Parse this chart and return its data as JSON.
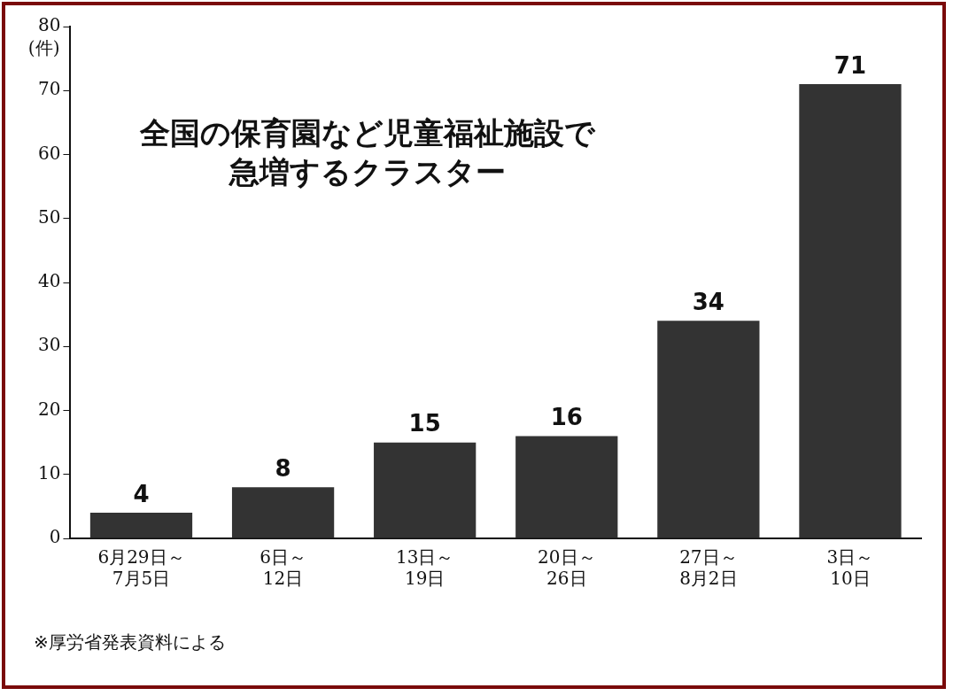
{
  "chart_data": {
    "type": "bar",
    "title": "全国の保育園など児童福祉施設で急増するクラスター",
    "ylabel": "(件)",
    "categories": [
      "6月29日～\n7月5日",
      "6日～\n12日",
      "13日～\n19日",
      "20日～\n26日",
      "27日～\n8月2日",
      "3日～\n10日"
    ],
    "values": [
      4,
      8,
      15,
      16,
      34,
      71
    ],
    "color": "#333333",
    "ylim": [
      0,
      80
    ],
    "yticks": [
      0,
      10,
      20,
      30,
      40,
      50,
      60,
      70,
      80
    ],
    "grid": false,
    "data_labels": true,
    "annotations": [
      "※厚労省発表資料による"
    ]
  }
}
